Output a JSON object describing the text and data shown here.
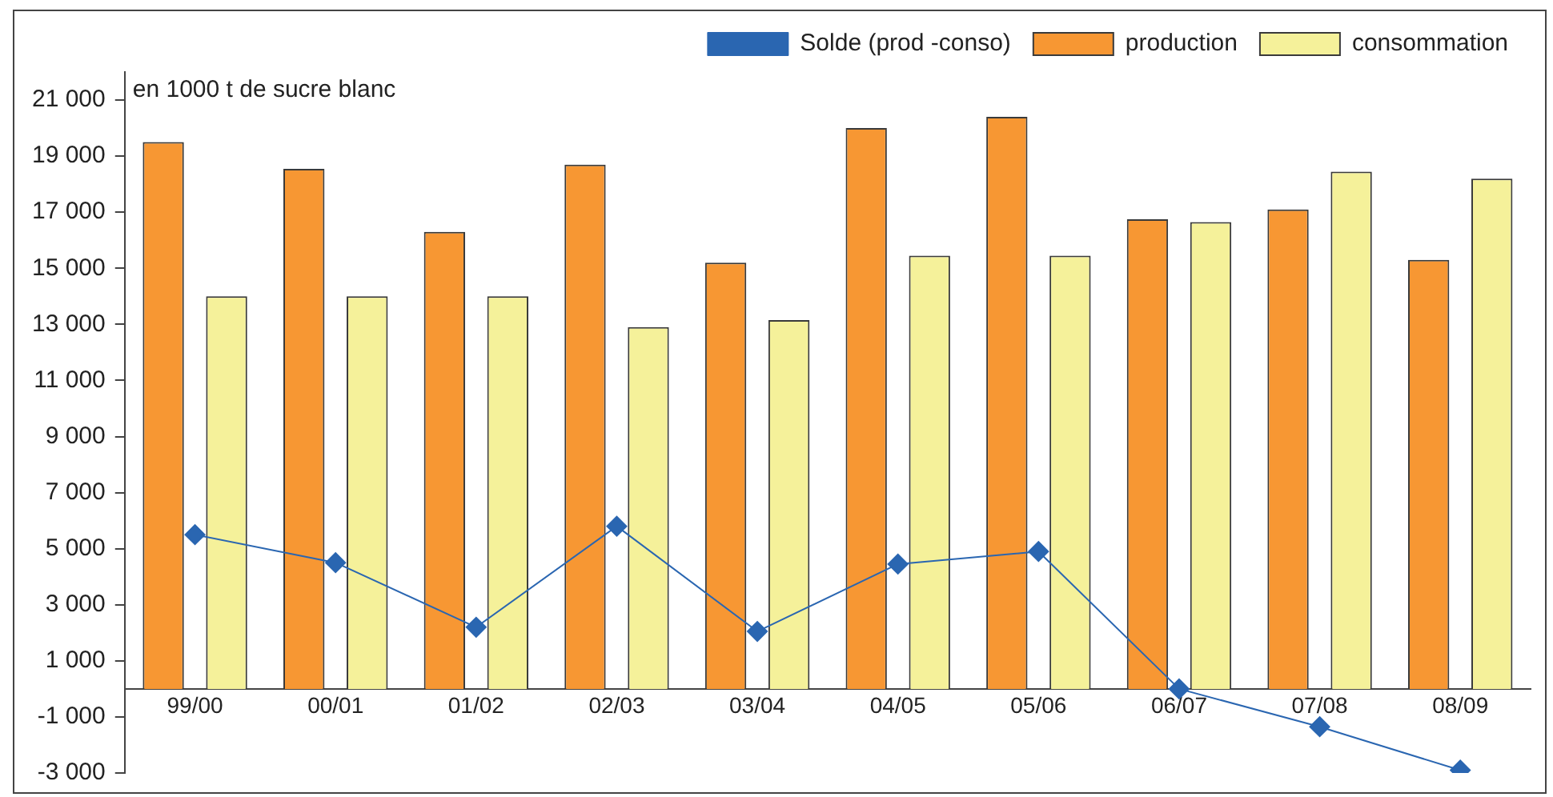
{
  "chart_data": {
    "type": "bar",
    "annotations": [
      "en 1000 t de sucre blanc"
    ],
    "categories": [
      "99/00",
      "00/01",
      "01/02",
      "02/03",
      "03/04",
      "04/05",
      "05/06",
      "06/07",
      "07/08",
      "08/09"
    ],
    "series": [
      {
        "name": "production",
        "color": "#f79733",
        "values": [
          19500,
          18550,
          16300,
          18700,
          15200,
          20000,
          20400,
          16750,
          17100,
          15300
        ]
      },
      {
        "name": "consommation",
        "color": "#f5f19a",
        "values": [
          14000,
          14000,
          14000,
          12900,
          13150,
          15450,
          15450,
          16650,
          18450,
          18200
        ]
      },
      {
        "name": "Solde (prod -conso)",
        "type": "line",
        "color": "#2a66b1",
        "marker": "diamond",
        "values": [
          5500,
          4500,
          2200,
          5800,
          2050,
          4450,
          4900,
          0,
          -1350,
          -2900
        ]
      }
    ],
    "ylim": [
      -3000,
      22000
    ],
    "yticks": [
      {
        "value": -3000,
        "label": "-3 000"
      },
      {
        "value": -1000,
        "label": "-1 000"
      },
      {
        "value": 1000,
        "label": "1 000"
      },
      {
        "value": 3000,
        "label": "3 000"
      },
      {
        "value": 5000,
        "label": "5 000"
      },
      {
        "value": 7000,
        "label": "7 000"
      },
      {
        "value": 9000,
        "label": "9 000"
      },
      {
        "value": 11000,
        "label": "11 000"
      },
      {
        "value": 13000,
        "label": "13 000"
      },
      {
        "value": 15000,
        "label": "15 000"
      },
      {
        "value": 17000,
        "label": "17 000"
      },
      {
        "value": 19000,
        "label": "19 000"
      },
      {
        "value": 21000,
        "label": "21 000"
      }
    ],
    "grid": false,
    "legend": "top right"
  }
}
